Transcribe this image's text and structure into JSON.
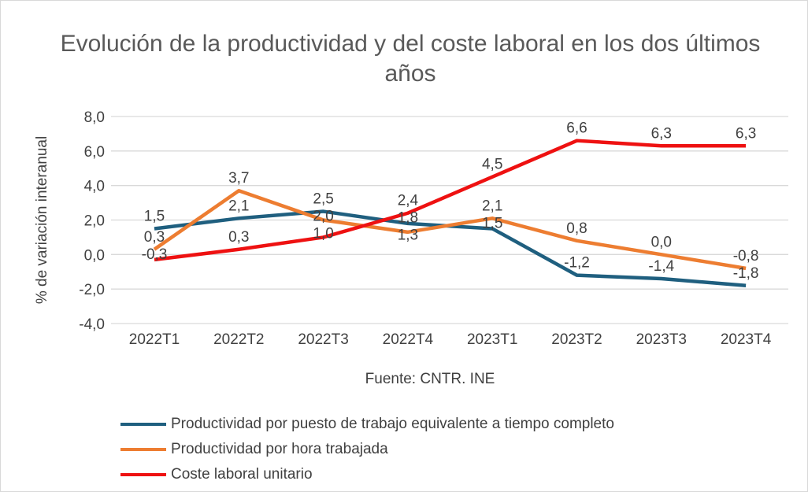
{
  "chart_data": {
    "type": "line",
    "title": "Evolución de la productividad y del coste laboral en los dos últimos años",
    "ylabel": "% de variación interanual",
    "xlabel": "",
    "source": "Fuente: CNTR. INE",
    "categories": [
      "2022T1",
      "2022T2",
      "2022T3",
      "2022T4",
      "2023T1",
      "2023T2",
      "2023T3",
      "2023T4"
    ],
    "ylim": [
      -4,
      8
    ],
    "yticks": [
      "8,0",
      "6,0",
      "4,0",
      "2,0",
      "0,0",
      "-2,0",
      "-4,0"
    ],
    "grid": true,
    "legend_position": "bottom",
    "series": [
      {
        "name": "Productividad por puesto de trabajo equivalente a tiempo completo",
        "color": "#1f5f7f",
        "values": [
          1.5,
          2.1,
          2.5,
          1.8,
          1.5,
          -1.2,
          -1.4,
          -1.8
        ],
        "labels": [
          "1,5",
          "2,1",
          "2,5",
          "1,8",
          "1,5",
          "-1,2",
          "-1,4",
          "-1,8"
        ]
      },
      {
        "name": "Productividad por hora trabajada",
        "color": "#ed7d31",
        "values": [
          0.3,
          3.7,
          2.0,
          1.3,
          2.1,
          0.8,
          0.0,
          -0.8
        ],
        "labels": [
          "0,3",
          "3,7",
          "2,0",
          "1,3",
          "2,1",
          "0,8",
          "0,0",
          "-0,8"
        ]
      },
      {
        "name": "Coste laboral unitario",
        "color": "#ee1111",
        "values": [
          -0.3,
          0.3,
          1.0,
          2.4,
          4.5,
          6.6,
          6.3,
          6.3
        ],
        "labels": [
          "-0,3",
          "0,3",
          "1,0",
          "2,4",
          "4,5",
          "6,6",
          "6,3",
          "6,3"
        ]
      }
    ]
  }
}
